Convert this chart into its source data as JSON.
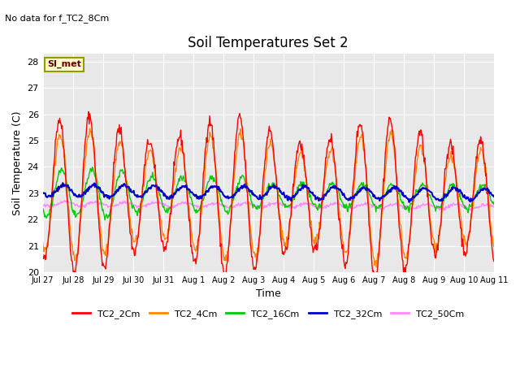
{
  "title": "Soil Temperatures Set 2",
  "subtitle": "No data for f_TC2_8Cm",
  "ylabel": "Soil Temperature (C)",
  "xlabel": "Time",
  "ylim": [
    20.0,
    28.3
  ],
  "yticks": [
    20.0,
    21.0,
    22.0,
    23.0,
    24.0,
    25.0,
    26.0,
    27.0,
    28.0
  ],
  "bg_color": "#e8e8e8",
  "legend_label": "SI_met",
  "legend_bg": "#ffffcc",
  "legend_border": "#999900",
  "series_colors": {
    "TC2_2Cm": "#ff0000",
    "TC2_4Cm": "#ff8800",
    "TC2_16Cm": "#00cc00",
    "TC2_32Cm": "#0000cc",
    "TC2_50Cm": "#ff88ff"
  },
  "xtick_labels": [
    "Jul 27",
    "Jul 28",
    "Jul 29",
    "Jul 30",
    "Jul 31",
    "Aug 1",
    "Aug 2",
    "Aug 3",
    "Aug 4",
    "Aug 5",
    "Aug 6",
    "Aug 7",
    "Aug 8",
    "Aug 9",
    "Aug 10",
    "Aug 11"
  ],
  "n_days": 15,
  "points_per_day": 48
}
